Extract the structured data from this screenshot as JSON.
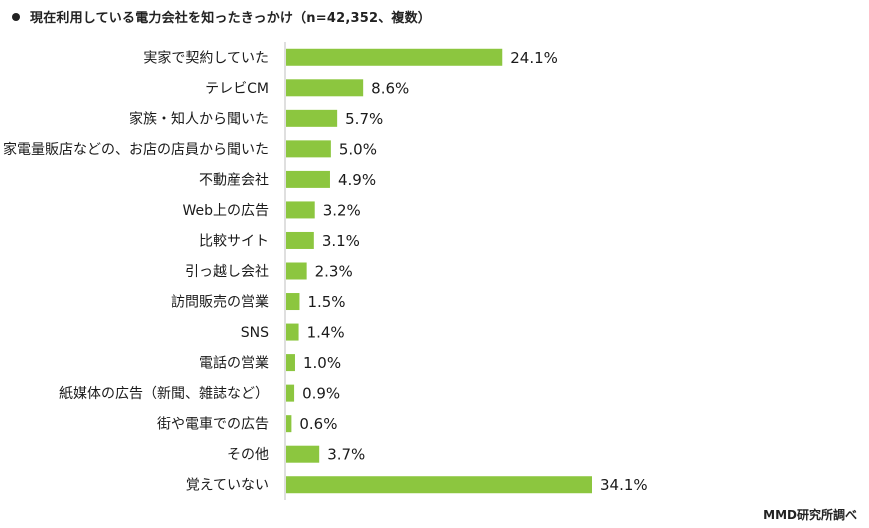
{
  "title": "現在利用している電力会社を知ったきっかけ（n=42,352、複数）",
  "credit": "MMD研究所調べ",
  "bar_color": "#8cc63f",
  "chart_data": {
    "type": "bar",
    "orientation": "horizontal",
    "title": "現在利用している電力会社を知ったきっかけ（n=42,352、複数）",
    "categories": [
      "実家で契約していた",
      "テレビCM",
      "家族・知人から聞いた",
      "家電量販店などの、お店の店員から聞いた",
      "不動産会社",
      "Web上の広告",
      "比較サイト",
      "引っ越し会社",
      "訪問販売の営業",
      "SNS",
      "電話の営業",
      "紙媒体の広告（新聞、雑誌など）",
      "街や電車での広告",
      "その他",
      "覚えていない"
    ],
    "values": [
      24.1,
      8.6,
      5.7,
      5.0,
      4.9,
      3.2,
      3.1,
      2.3,
      1.5,
      1.4,
      1.0,
      0.9,
      0.6,
      3.7,
      34.1
    ],
    "value_labels": [
      "24.1%",
      "8.6%",
      "5.7%",
      "5.0%",
      "4.9%",
      "3.2%",
      "3.1%",
      "2.3%",
      "1.5%",
      "1.4%",
      "1.0%",
      "0.9%",
      "0.6%",
      "3.7%",
      "34.1%"
    ],
    "unit": "%",
    "grid": false,
    "legend": "none"
  }
}
